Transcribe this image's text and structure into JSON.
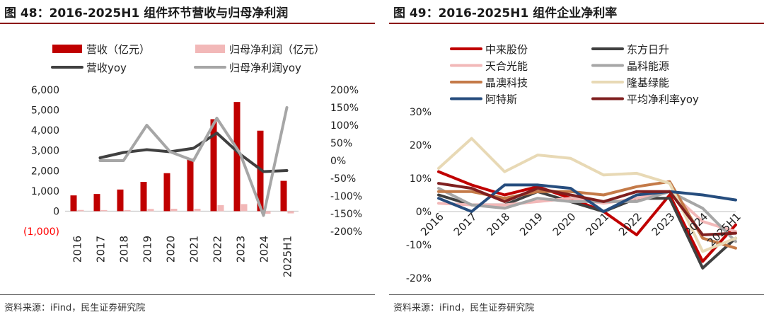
{
  "charts": [
    {
      "title": "图 48：2016-2025H1 组件环节营收与归母净利润",
      "source": "资料来源：iFind，民生证券研究院"
    },
    {
      "title": "图 49：2016-2025H1 组件企业净利率",
      "source": "资料来源：iFind，民生证券研究院"
    }
  ],
  "chart_data": [
    {
      "type": "bar",
      "categories": [
        "2016",
        "2017",
        "2018",
        "2019",
        "2020",
        "2021",
        "2022",
        "2023",
        "2024",
        "2025H1"
      ],
      "series": [
        {
          "name": "营收（亿元）",
          "kind": "bar",
          "axis": "left",
          "color": "#c00000",
          "values": [
            780,
            850,
            1070,
            1450,
            1880,
            2600,
            4550,
            5400,
            3980,
            1500
          ]
        },
        {
          "name": "归母净利润（亿元）",
          "kind": "bar",
          "axis": "left",
          "color": "#f2b8b8",
          "values": [
            60,
            55,
            55,
            110,
            120,
            120,
            300,
            350,
            -130,
            -110
          ]
        },
        {
          "name": "营收yoy",
          "kind": "line",
          "axis": "right",
          "color": "#404040",
          "values": [
            null,
            8,
            23,
            31,
            25,
            35,
            78,
            18,
            -31,
            -28
          ]
        },
        {
          "name": "归母净利润yoy",
          "kind": "line",
          "axis": "right",
          "color": "#a6a6a6",
          "values": [
            null,
            0,
            0,
            100,
            25,
            0,
            120,
            20,
            -155,
            150
          ]
        }
      ],
      "left_axis": {
        "min": -1000,
        "max": 6000,
        "ticks": [
          "(1,000)",
          "0",
          "1,000",
          "2,000",
          "3,000",
          "4,000",
          "5,000",
          "6,000"
        ],
        "tick_values": [
          -1000,
          0,
          1000,
          2000,
          3000,
          4000,
          5000,
          6000
        ]
      },
      "right_axis": {
        "min": -200,
        "max": 200,
        "ticks": [
          "-200%",
          "-150%",
          "-100%",
          "-50%",
          "0%",
          "50%",
          "100%",
          "150%",
          "200%"
        ],
        "tick_values": [
          -200,
          -150,
          -100,
          -50,
          0,
          50,
          100,
          150,
          200
        ]
      },
      "negative_tick_color": "#ff0000",
      "legend_position": "top"
    },
    {
      "type": "line",
      "categories": [
        "2016",
        "2017",
        "2018",
        "2019",
        "2020",
        "2021",
        "2022",
        "2023",
        "2024",
        "2025H1"
      ],
      "series": [
        {
          "name": "中来股份",
          "color": "#c00000",
          "values": [
            12,
            8,
            5,
            7.5,
            4,
            0,
            -7,
            5,
            -15,
            -4
          ]
        },
        {
          "name": "东方日升",
          "color": "#404040",
          "values": [
            5,
            2,
            2,
            6,
            3,
            0,
            4,
            4,
            -17,
            -8
          ]
        },
        {
          "name": "天合光能",
          "color": "#f2b8b8",
          "values": [
            2.5,
            2,
            2,
            3,
            4,
            2.5,
            4,
            6,
            -3,
            -6
          ]
        },
        {
          "name": "晶科能源",
          "color": "#a6a6a6",
          "values": [
            7,
            2,
            1,
            4,
            3,
            3,
            3,
            6,
            1,
            -9
          ]
        },
        {
          "name": "晶澳科技",
          "color": "#c47a48",
          "values": [
            6,
            6,
            4,
            6,
            6,
            5,
            7.5,
            9,
            -8,
            -11
          ]
        },
        {
          "name": "隆基绿能",
          "color": "#e8d9b5",
          "values": [
            13,
            22,
            12,
            17,
            16,
            11,
            11.5,
            8.5,
            -12,
            -8
          ]
        },
        {
          "name": "阿特斯",
          "color": "#264d7e",
          "values": [
            4,
            0,
            8,
            8,
            7,
            0,
            5,
            6,
            5,
            3.5
          ]
        },
        {
          "name": "平均净利率yoy",
          "color": "#7f1f1f",
          "values": [
            8.5,
            7,
            3,
            7,
            5,
            3,
            6,
            6,
            -7,
            -6.5
          ]
        }
      ],
      "y_axis": {
        "min": -20,
        "max": 30,
        "ticks": [
          "-20%",
          "-10%",
          "0%",
          "10%",
          "20%",
          "30%"
        ],
        "tick_values": [
          -20,
          -10,
          0,
          10,
          20,
          30
        ]
      },
      "legend_position": "top"
    }
  ]
}
